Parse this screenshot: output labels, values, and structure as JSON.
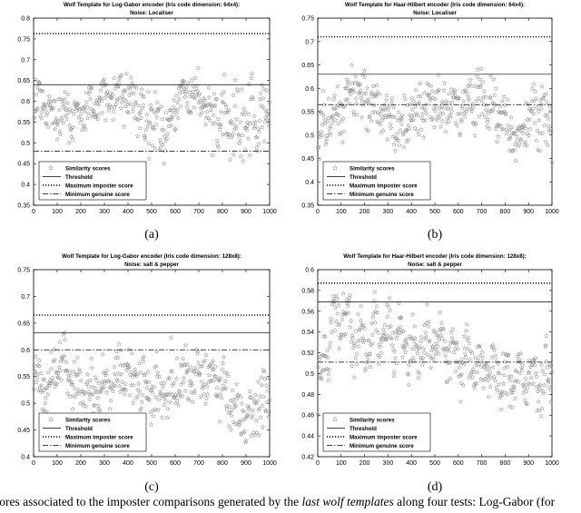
{
  "chart_data": [
    {
      "type": "scatter",
      "label": "(a)",
      "title": "Wolf Template for Log-Gabor encoder (Iris code dimension: 64x4):",
      "subtitle": "Noise: Localiser",
      "xlim": [
        0,
        1000
      ],
      "ylim": [
        0.35,
        0.8
      ],
      "xticks": [
        0,
        100,
        200,
        300,
        400,
        500,
        600,
        700,
        800,
        900,
        1000
      ],
      "yticks": [
        0.35,
        0.4,
        0.45,
        0.5,
        0.55,
        0.6,
        0.65,
        0.7,
        0.75,
        0.8
      ],
      "series": [
        {
          "name": "Similarity scores",
          "style": "star",
          "segments": [
            [
              0,
              0.61,
              0.05
            ],
            [
              100,
              0.565,
              0.04
            ],
            [
              200,
              0.57,
              0.04
            ],
            [
              300,
              0.6,
              0.045
            ],
            [
              370,
              0.63,
              0.04
            ],
            [
              420,
              0.585,
              0.06
            ],
            [
              500,
              0.56,
              0.06
            ],
            [
              560,
              0.535,
              0.05
            ],
            [
              650,
              0.625,
              0.04
            ],
            [
              700,
              0.615,
              0.045
            ],
            [
              760,
              0.545,
              0.06
            ],
            [
              850,
              0.555,
              0.07
            ],
            [
              1000,
              0.56,
              0.07
            ]
          ]
        },
        {
          "name": "Threshold",
          "style": "solid",
          "y": 0.64
        },
        {
          "name": "Maximum imposter score",
          "style": "dotted",
          "y": 0.763
        },
        {
          "name": "Minimum genuine score",
          "style": "dashdot",
          "y": 0.48
        }
      ],
      "legend": "bottom-left"
    },
    {
      "type": "scatter",
      "label": "(b)",
      "title": "Wolf Template for Haar-Hilbert encoder (Iris code dimension: 64x4):",
      "subtitle": "Noise: Localiser",
      "xlim": [
        0,
        1000
      ],
      "ylim": [
        0.35,
        0.75
      ],
      "xticks": [
        0,
        100,
        200,
        300,
        400,
        500,
        600,
        700,
        800,
        900,
        1000
      ],
      "yticks": [
        0.35,
        0.4,
        0.45,
        0.5,
        0.55,
        0.6,
        0.65,
        0.7,
        0.75
      ],
      "series": [
        {
          "name": "Similarity scores",
          "style": "star",
          "segments": [
            [
              0,
              0.52,
              0.05
            ],
            [
              100,
              0.55,
              0.04
            ],
            [
              150,
              0.61,
              0.04
            ],
            [
              200,
              0.58,
              0.04
            ],
            [
              280,
              0.55,
              0.04
            ],
            [
              350,
              0.52,
              0.04
            ],
            [
              450,
              0.56,
              0.05
            ],
            [
              500,
              0.57,
              0.04
            ],
            [
              600,
              0.56,
              0.04
            ],
            [
              700,
              0.58,
              0.05
            ],
            [
              780,
              0.54,
              0.04
            ],
            [
              850,
              0.5,
              0.04
            ],
            [
              950,
              0.55,
              0.05
            ],
            [
              1000,
              0.5,
              0.05
            ]
          ]
        },
        {
          "name": "Threshold",
          "style": "solid",
          "y": 0.63
        },
        {
          "name": "Maximum imposter score",
          "style": "dotted",
          "y": 0.71
        },
        {
          "name": "Minimum genuine score",
          "style": "dashdot",
          "y": 0.565
        }
      ],
      "legend": "bottom-left"
    },
    {
      "type": "scatter",
      "label": "(c)",
      "title": "Wolf Template for Log-Gabor encoder (Iris code dimension: 128x8):",
      "subtitle": "Noise: salt & pepper",
      "xlim": [
        0,
        1000
      ],
      "ylim": [
        0.4,
        0.75
      ],
      "xticks": [
        0,
        100,
        200,
        300,
        400,
        500,
        600,
        700,
        800,
        900,
        1000
      ],
      "yticks": [
        0.4,
        0.45,
        0.5,
        0.55,
        0.6,
        0.65,
        0.7,
        0.75
      ],
      "series": [
        {
          "name": "Similarity scores",
          "style": "star",
          "segments": [
            [
              0,
              0.56,
              0.04
            ],
            [
              60,
              0.52,
              0.03
            ],
            [
              110,
              0.58,
              0.04
            ],
            [
              200,
              0.515,
              0.03
            ],
            [
              300,
              0.525,
              0.035
            ],
            [
              400,
              0.56,
              0.04
            ],
            [
              500,
              0.52,
              0.04
            ],
            [
              600,
              0.545,
              0.04
            ],
            [
              700,
              0.56,
              0.035
            ],
            [
              800,
              0.53,
              0.04
            ],
            [
              900,
              0.46,
              0.035
            ],
            [
              1000,
              0.52,
              0.04
            ]
          ]
        },
        {
          "name": "Threshold",
          "style": "solid",
          "y": 0.632
        },
        {
          "name": "Maximum imposter score",
          "style": "dotted",
          "y": 0.665
        },
        {
          "name": "Minimum genuine score",
          "style": "dashdot",
          "y": 0.6
        }
      ],
      "legend": "bottom-left"
    },
    {
      "type": "scatter",
      "label": "(d)",
      "title": "Wolf Template for Haar-Hilbert encoder (Iris code dimension: 128x8):",
      "subtitle": "Noise: salt & pepper",
      "xlim": [
        0,
        1000
      ],
      "ylim": [
        0.42,
        0.6
      ],
      "xticks": [
        0,
        100,
        200,
        300,
        400,
        500,
        600,
        700,
        800,
        900,
        1000
      ],
      "yticks": [
        0.42,
        0.44,
        0.46,
        0.48,
        0.5,
        0.52,
        0.54,
        0.56,
        0.58,
        0.6
      ],
      "series": [
        {
          "name": "Similarity scores",
          "style": "star",
          "segments": [
            [
              0,
              0.48,
              0.025
            ],
            [
              60,
              0.545,
              0.02
            ],
            [
              100,
              0.555,
              0.02
            ],
            [
              200,
              0.53,
              0.02
            ],
            [
              300,
              0.545,
              0.02
            ],
            [
              400,
              0.52,
              0.02
            ],
            [
              500,
              0.53,
              0.02
            ],
            [
              600,
              0.515,
              0.02
            ],
            [
              700,
              0.51,
              0.02
            ],
            [
              800,
              0.49,
              0.02
            ],
            [
              900,
              0.5,
              0.02
            ],
            [
              1000,
              0.495,
              0.02
            ]
          ]
        },
        {
          "name": "Threshold",
          "style": "solid",
          "y": 0.569
        },
        {
          "name": "Maximum imposter score",
          "style": "dotted",
          "y": 0.587
        },
        {
          "name": "Minimum genuine score",
          "style": "dashdot",
          "y": 0.511
        }
      ],
      "legend": "bottom-left"
    }
  ],
  "caption": {
    "start": "scores associated to the imposter comparisons generated by the ",
    "emphasis": "last wolf templates",
    "end": " along four tests: Log-Gabor (for"
  }
}
